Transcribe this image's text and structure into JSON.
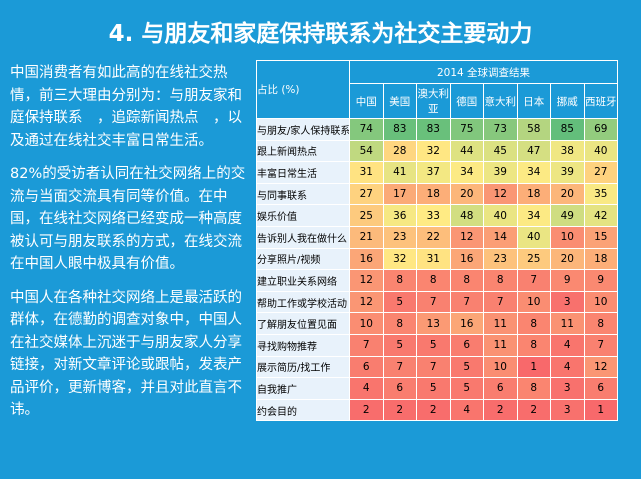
{
  "header": {
    "title": "4. 与朋友和家庭保持联系为社交主要动力"
  },
  "body": {
    "paragraphs": [
      "中国消费者有如此高的在线社交热情，前三大理由分别为：与朋友家和庭保持联系　，追踪新闻热点　，以及通过在线社交丰富日常生活。",
      "82%的受访者认同在社交网络上的交流与当面交流具有同等价值。在中国，在线社交网络已经变成一种高度被认可与朋友联系的方式，在线交流在中国人眼中极具有价值。",
      "中国人在各种社交网络上是最活跃的群体，在德勤的调查对象中，中国人在社交媒体上沉迷于与朋友家人分享链接，对新文章评论或跟帖，发表产品评价，更新博客，并且对此直言不讳。"
    ]
  },
  "table": {
    "corner": "占比 (%)",
    "group": "2014 全球调查结果",
    "columns": [
      "中国",
      "美国",
      "澳大利亚",
      "德国",
      "意大利",
      "日本",
      "挪威",
      "西班牙"
    ],
    "rows": [
      {
        "label": "与朋友/家人保持联系",
        "values": [
          74,
          83,
          83,
          75,
          73,
          58,
          85,
          69
        ]
      },
      {
        "label": "跟上新闻热点",
        "values": [
          54,
          28,
          32,
          44,
          45,
          47,
          38,
          40
        ]
      },
      {
        "label": "丰富日常生活",
        "values": [
          31,
          41,
          37,
          34,
          39,
          34,
          39,
          27
        ]
      },
      {
        "label": "与同事联系",
        "values": [
          27,
          17,
          18,
          20,
          12,
          18,
          20,
          35
        ]
      },
      {
        "label": "娱乐价值",
        "values": [
          25,
          36,
          33,
          48,
          40,
          34,
          49,
          42
        ]
      },
      {
        "label": "告诉别人我在做什么",
        "values": [
          21,
          23,
          22,
          12,
          14,
          40,
          10,
          15
        ]
      },
      {
        "label": "分享照片/视频",
        "values": [
          16,
          32,
          31,
          16,
          23,
          25,
          20,
          18
        ]
      },
      {
        "label": "建立职业关系网络",
        "values": [
          12,
          8,
          8,
          8,
          8,
          7,
          9,
          9
        ]
      },
      {
        "label": "帮助工作或学校活动",
        "values": [
          12,
          5,
          7,
          7,
          7,
          10,
          3,
          10
        ]
      },
      {
        "label": "了解朋友位置见面",
        "values": [
          10,
          8,
          13,
          16,
          11,
          8,
          11,
          8
        ]
      },
      {
        "label": "寻找购物推荐",
        "values": [
          7,
          5,
          5,
          6,
          11,
          8,
          4,
          7
        ]
      },
      {
        "label": "展示简历/找工作",
        "values": [
          6,
          7,
          7,
          5,
          10,
          1,
          4,
          12
        ]
      },
      {
        "label": "自我推广",
        "values": [
          4,
          6,
          5,
          5,
          6,
          8,
          3,
          6
        ]
      },
      {
        "label": "约会目的",
        "values": [
          2,
          2,
          2,
          4,
          2,
          2,
          3,
          1
        ]
      }
    ]
  }
}
